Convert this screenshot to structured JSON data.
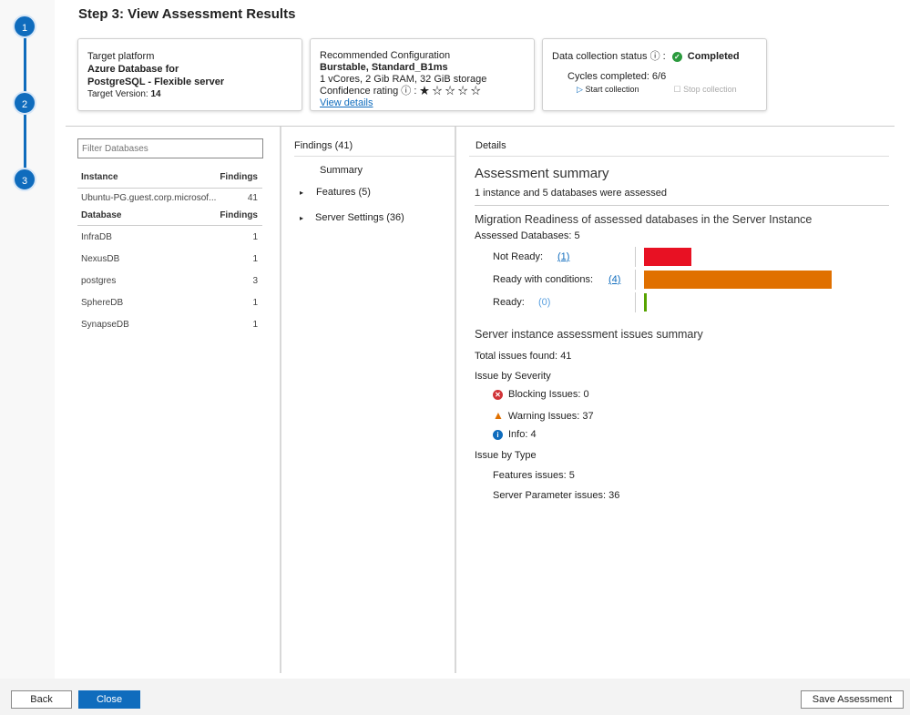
{
  "steps": [
    "1",
    "2",
    "3"
  ],
  "title": "Step 3: View Assessment Results",
  "target": {
    "label": "Target platform",
    "name1": "Azure Database for",
    "name2": "PostgreSQL - Flexible server",
    "version_label": "Target Version:",
    "version": "14"
  },
  "config": {
    "label": "Recommended Configuration",
    "sku": "Burstable, Standard_B1ms",
    "specs": "1 vCores, 2 Gib RAM, 32 GiB storage",
    "confidence_label": "Confidence rating",
    "rating": 1,
    "rating_max": 5,
    "view_details": "View details"
  },
  "collection": {
    "label": "Data collection status",
    "status": "Completed",
    "cycles": "Cycles completed: 6/6",
    "start": "Start collection",
    "stop": "Stop collection"
  },
  "filter": {
    "placeholder": "Filter Databases"
  },
  "instance": {
    "header": "Instance",
    "findings_header": "Findings",
    "name": "Ubuntu-PG.guest.corp.microsof...",
    "findings": "41"
  },
  "databases": {
    "header": "Database",
    "findings_header": "Findings",
    "rows": [
      {
        "name": "InfraDB",
        "findings": "1"
      },
      {
        "name": "NexusDB",
        "findings": "1"
      },
      {
        "name": "postgres",
        "findings": "3"
      },
      {
        "name": "SphereDB",
        "findings": "1"
      },
      {
        "name": "SynapseDB",
        "findings": "1"
      }
    ]
  },
  "findings": {
    "header": "Findings (41)",
    "summary": "Summary",
    "features": "Features (5)",
    "server_settings": "Server Settings (36)"
  },
  "details": {
    "header": "Details",
    "title": "Assessment summary",
    "subtitle": "1 instance and 5 databases were assessed",
    "readiness_title": "Migration Readiness of assessed databases in the Server Instance",
    "assessed": "Assessed Databases:",
    "assessed_count": "5",
    "readiness": [
      {
        "label": "Not Ready:",
        "count": "(1)",
        "value": 1,
        "color": "#e81123"
      },
      {
        "label": "Ready with conditions:",
        "count": "(4)",
        "value": 4,
        "color": "#e07000"
      },
      {
        "label": "Ready:",
        "count": "(0)",
        "value": 0,
        "color": "#57a300"
      }
    ],
    "issues_title": "Server instance assessment issues summary",
    "total_label": "Total issues found:",
    "total": "41",
    "severity_label": "Issue by Severity",
    "blocking_label": "Blocking Issues:",
    "blocking": "0",
    "warning_label": "Warning Issues:",
    "warning": "37",
    "info_label": "Info:",
    "info": "4",
    "type_label": "Issue by Type",
    "features_label": "Features issues:",
    "features": "5",
    "params_label": "Server Parameter issues:",
    "params": "36"
  },
  "footer": {
    "back": "Back",
    "close": "Close",
    "save": "Save Assessment"
  }
}
